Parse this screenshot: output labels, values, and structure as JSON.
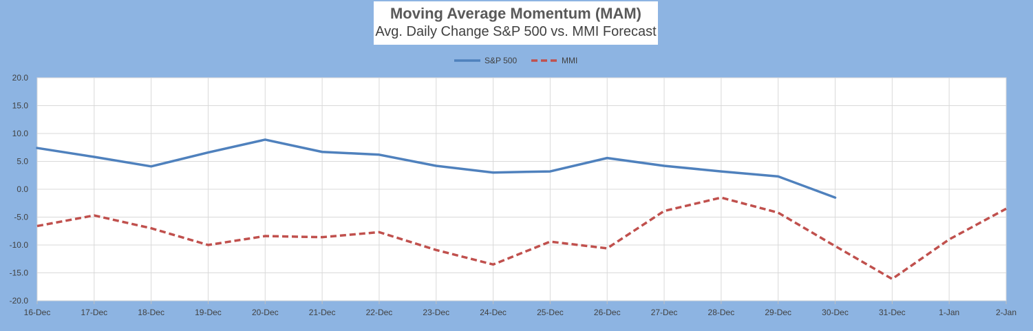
{
  "chart_data": {
    "type": "line",
    "title": "Moving Average Momentum (MAM)",
    "subtitle": "Avg. Daily Change S&P 500 vs. MMI Forecast",
    "categories": [
      "16-Dec",
      "17-Dec",
      "18-Dec",
      "19-Dec",
      "20-Dec",
      "21-Dec",
      "22-Dec",
      "23-Dec",
      "24-Dec",
      "25-Dec",
      "26-Dec",
      "27-Dec",
      "28-Dec",
      "29-Dec",
      "30-Dec",
      "31-Dec",
      "1-Jan",
      "2-Jan"
    ],
    "ylim": [
      -20,
      20
    ],
    "yticks": [
      "20.0",
      "15.0",
      "10.0",
      "5.0",
      "0.0",
      "-5.0",
      "-10.0",
      "-15.0",
      "-20.0"
    ],
    "grid": true,
    "legend_position": "top",
    "series": [
      {
        "name": "S&P 500",
        "color": "#4f81bd",
        "style": "solid",
        "values": [
          7.4,
          5.8,
          4.1,
          6.6,
          8.9,
          6.7,
          6.2,
          4.2,
          3.0,
          3.2,
          5.6,
          4.2,
          3.2,
          2.3,
          -1.5,
          null,
          null,
          null
        ]
      },
      {
        "name": "MMI",
        "color": "#c0504d",
        "style": "dashed",
        "values": [
          -6.6,
          -4.7,
          -7.0,
          -10.0,
          -8.4,
          -8.6,
          -7.7,
          -10.9,
          -13.5,
          -9.4,
          -10.6,
          -3.9,
          -1.5,
          -4.2,
          -10.2,
          -16.1,
          -9.0,
          -3.5
        ]
      }
    ]
  }
}
